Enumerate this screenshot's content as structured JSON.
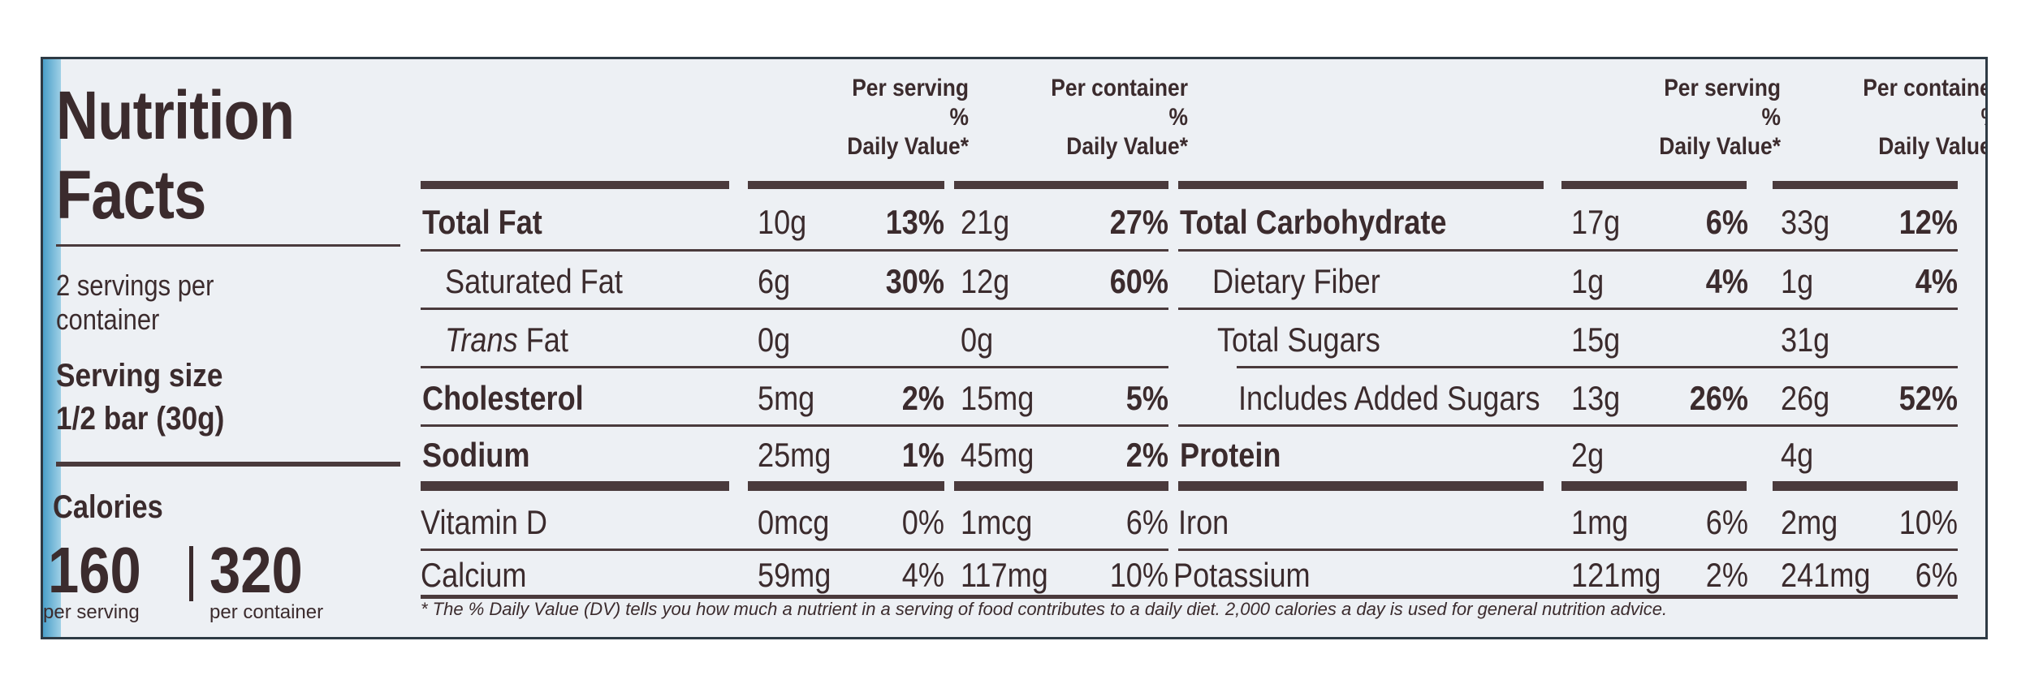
{
  "title_line1": "Nutrition",
  "title_line2": "Facts",
  "servings_line1": "2 servings per",
  "servings_line2": "container",
  "serving_size_label": "Serving size",
  "serving_size_value": "1/2 bar (30g)",
  "calories_label": "Calories",
  "calories_per_serving": "160",
  "calories_per_container": "320",
  "per_serving_sub": "per serving",
  "per_container_sub": "per container",
  "headers": {
    "per_serving": "Per serving",
    "per_container": "Per container",
    "pct": "%",
    "daily_value": "Daily Value*"
  },
  "left_rows": [
    {
      "name": "Total Fat",
      "serv_amt": "10g",
      "serv_pct": "13%",
      "cont_amt": "21g",
      "cont_pct": "27%"
    },
    {
      "name": "Saturated Fat",
      "serv_amt": "6g",
      "serv_pct": "30%",
      "cont_amt": "12g",
      "cont_pct": "60%"
    },
    {
      "name_italic": "Trans",
      "name": " Fat",
      "serv_amt": "0g",
      "serv_pct": "",
      "cont_amt": "0g",
      "cont_pct": ""
    },
    {
      "name": "Cholesterol",
      "serv_amt": "5mg",
      "serv_pct": "2%",
      "cont_amt": "15mg",
      "cont_pct": "5%"
    },
    {
      "name": "Sodium",
      "serv_amt": "25mg",
      "serv_pct": "1%",
      "cont_amt": "45mg",
      "cont_pct": "2%"
    },
    {
      "name": "Vitamin D",
      "serv_amt": "0mcg",
      "serv_pct": "0%",
      "cont_amt": "1mcg",
      "cont_pct": "6%"
    },
    {
      "name": "Calcium",
      "serv_amt": "59mg",
      "serv_pct": "4%",
      "cont_amt": "117mg",
      "cont_pct": "10%"
    }
  ],
  "right_rows": [
    {
      "name": "Total Carbohydrate",
      "serv_amt": "17g",
      "serv_pct": "6%",
      "cont_amt": "33g",
      "cont_pct": "12%"
    },
    {
      "name": "Dietary Fiber",
      "serv_amt": "1g",
      "serv_pct": "4%",
      "cont_amt": "1g",
      "cont_pct": "4%"
    },
    {
      "name": "Total Sugars",
      "serv_amt": "15g",
      "serv_pct": "",
      "cont_amt": "31g",
      "cont_pct": ""
    },
    {
      "name": "Includes Added Sugars",
      "serv_amt": "13g",
      "serv_pct": "26%",
      "cont_amt": "26g",
      "cont_pct": "52%"
    },
    {
      "name": "Protein",
      "serv_amt": "2g",
      "serv_pct": "",
      "cont_amt": "4g",
      "cont_pct": ""
    },
    {
      "name": "Iron",
      "serv_amt": "1mg",
      "serv_pct": "6%",
      "cont_amt": "2mg",
      "cont_pct": "10%"
    },
    {
      "name": "Potassium",
      "serv_amt": "121mg",
      "serv_pct": "2%",
      "cont_amt": "241mg",
      "cont_pct": "6%"
    }
  ],
  "footnote": "* The % Daily Value (DV) tells you how much a nutrient in a serving of food contributes to a daily diet. 2,000 calories a day is used for general nutrition advice."
}
